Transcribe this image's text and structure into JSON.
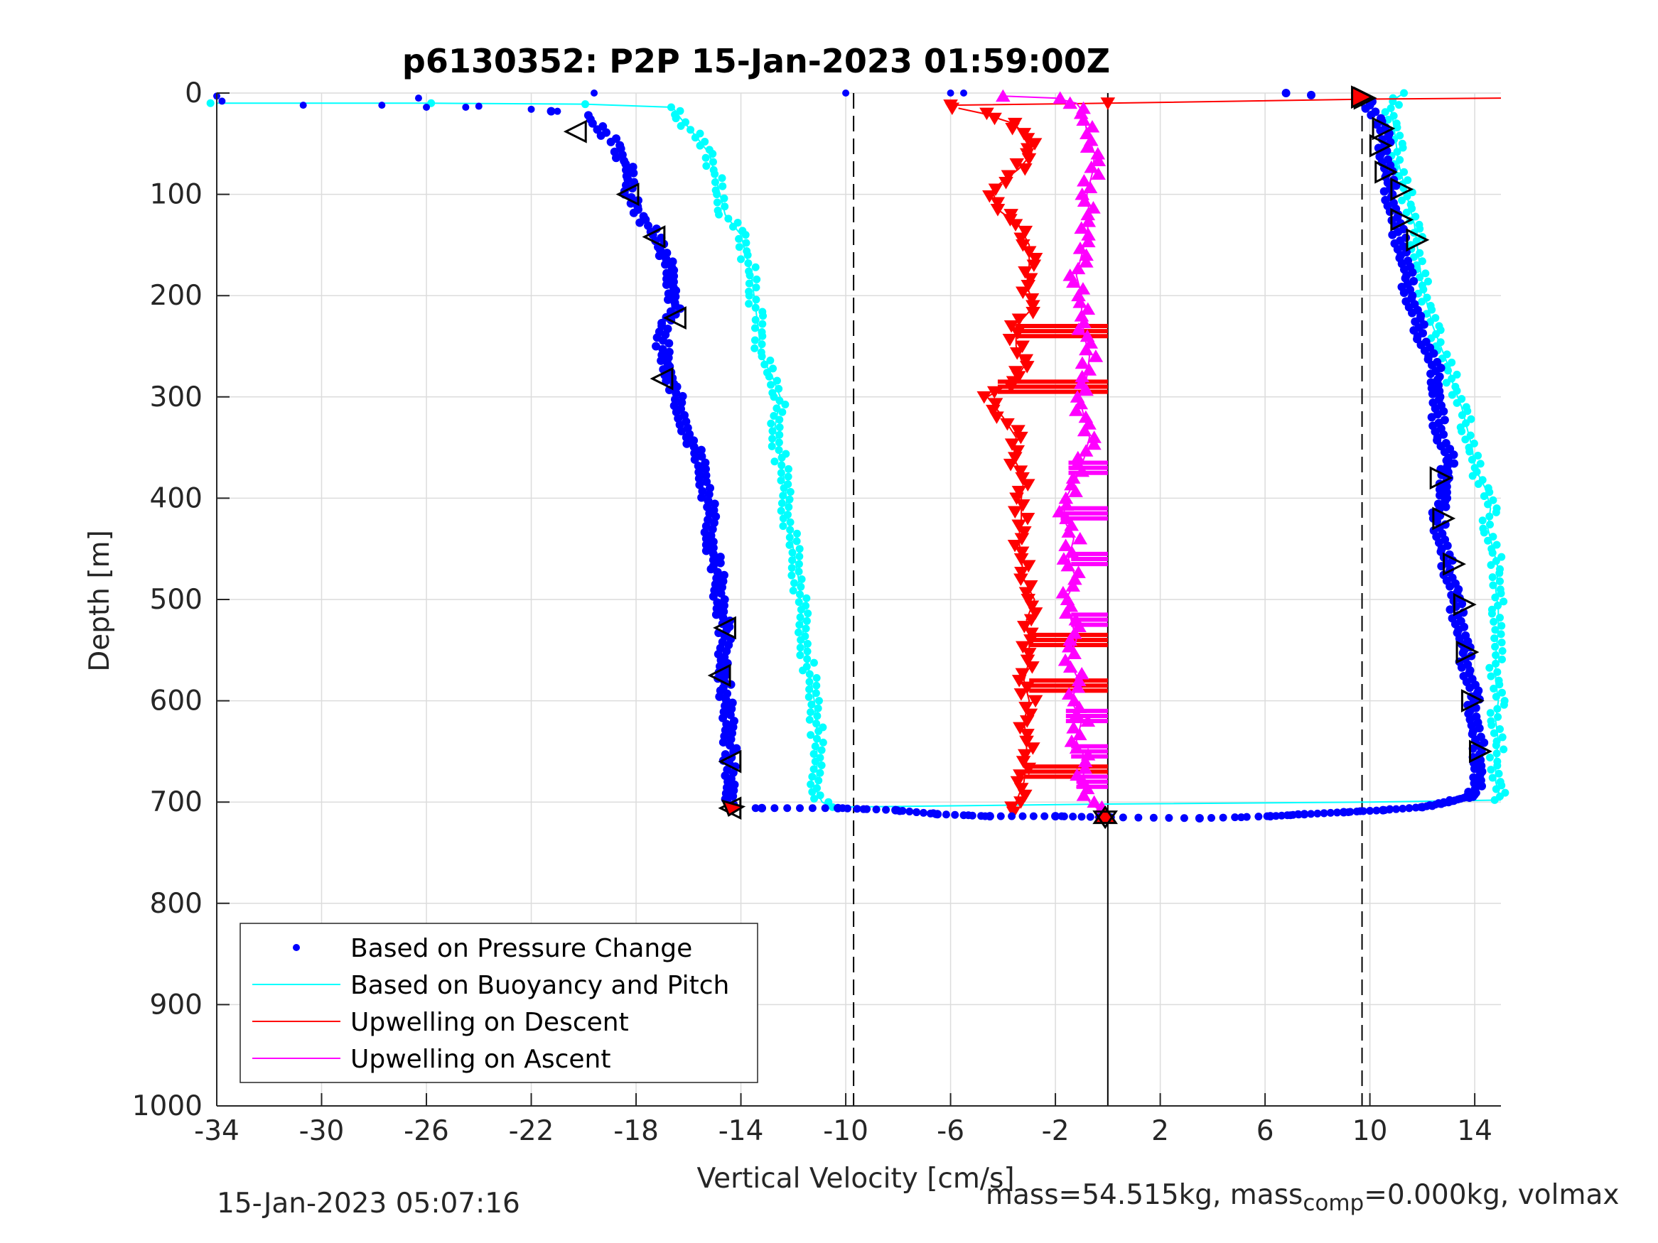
{
  "chart_data": {
    "type": "scatter",
    "title": "p6130352: P2P 15-Jan-2023 01:59:00Z",
    "xlabel": "Vertical Velocity [cm/s]",
    "ylabel": "Depth [m]",
    "xlim": [
      -34,
      15
    ],
    "ylim": [
      0,
      1000
    ],
    "y_reversed": true,
    "grid": true,
    "xticks": [
      -34,
      -30,
      -26,
      -22,
      -18,
      -14,
      -10,
      -6,
      -2,
      2,
      6,
      10,
      14
    ],
    "yticks": [
      0,
      100,
      200,
      300,
      400,
      500,
      600,
      700,
      800,
      900,
      1000
    ],
    "legend_position": "bottom-left",
    "vertical_lines": [
      {
        "x": -9.7,
        "style": "dashed",
        "color": "#000000"
      },
      {
        "x": 9.7,
        "style": "dashed",
        "color": "#000000"
      },
      {
        "x": 0,
        "style": "solid",
        "color": "#000000"
      }
    ],
    "series": [
      {
        "name": "Based on Pressure Change",
        "color": "#0000ff",
        "style": "dots",
        "descent": [
          [
            -34,
            3
          ],
          [
            -33.8,
            8
          ],
          [
            -30.7,
            12
          ],
          [
            -27.7,
            12
          ],
          [
            -26,
            14
          ],
          [
            -24.5,
            14
          ],
          [
            -22,
            16
          ],
          [
            -21,
            18
          ],
          [
            -20,
            22
          ],
          [
            -19.8,
            26
          ],
          [
            -19.6,
            30
          ],
          [
            -19.3,
            36
          ],
          [
            -19,
            45
          ],
          [
            -18.7,
            55
          ],
          [
            -18.4,
            70
          ],
          [
            -18.2,
            85
          ],
          [
            -18.2,
            100
          ],
          [
            -18.1,
            115
          ],
          [
            -17.7,
            125
          ],
          [
            -17.3,
            140
          ],
          [
            -16.9,
            155
          ],
          [
            -16.8,
            175
          ],
          [
            -16.6,
            195
          ],
          [
            -16.5,
            210
          ],
          [
            -16.9,
            230
          ],
          [
            -17,
            250
          ],
          [
            -16.9,
            270
          ],
          [
            -16.5,
            290
          ],
          [
            -16.4,
            315
          ],
          [
            -15.9,
            340
          ],
          [
            -15.6,
            365
          ],
          [
            -15.3,
            390
          ],
          [
            -15.2,
            415
          ],
          [
            -15.2,
            440
          ],
          [
            -14.9,
            470
          ],
          [
            -14.8,
            500
          ],
          [
            -14.6,
            530
          ],
          [
            -14.7,
            560
          ],
          [
            -14.6,
            590
          ],
          [
            -14.5,
            620
          ],
          [
            -14.4,
            650
          ],
          [
            -14.5,
            680
          ],
          [
            -14.4,
            700
          ],
          [
            -14.4,
            705
          ]
        ],
        "bottom": [
          [
            -13.2,
            706
          ],
          [
            -10.3,
            706
          ],
          [
            -8.1,
            708
          ],
          [
            -6.5,
            712
          ],
          [
            -4.5,
            714
          ],
          [
            -2,
            714
          ],
          [
            0,
            715
          ],
          [
            3.5,
            716
          ],
          [
            6.2,
            714
          ],
          [
            7.5,
            712
          ],
          [
            9,
            710
          ],
          [
            10.5,
            708
          ],
          [
            12,
            705
          ],
          [
            13,
            700
          ],
          [
            13.7,
            695
          ],
          [
            14,
            690
          ]
        ],
        "ascent": [
          [
            14,
            690
          ],
          [
            14.1,
            670
          ],
          [
            14.2,
            650
          ],
          [
            14,
            630
          ],
          [
            14,
            610
          ],
          [
            13.9,
            590
          ],
          [
            13.7,
            570
          ],
          [
            13.6,
            550
          ],
          [
            13.5,
            530
          ],
          [
            13.3,
            510
          ],
          [
            13.2,
            490
          ],
          [
            13,
            470
          ],
          [
            12.8,
            450
          ],
          [
            12.6,
            420
          ],
          [
            12.7,
            400
          ],
          [
            12.9,
            380
          ],
          [
            13,
            360
          ],
          [
            12.7,
            340
          ],
          [
            12.6,
            320
          ],
          [
            12.5,
            300
          ],
          [
            12.6,
            280
          ],
          [
            12.3,
            260
          ],
          [
            12,
            240
          ],
          [
            11.7,
            220
          ],
          [
            11.5,
            200
          ],
          [
            11.4,
            180
          ],
          [
            11.3,
            160
          ],
          [
            11.1,
            140
          ],
          [
            10.9,
            120
          ],
          [
            10.8,
            100
          ],
          [
            10.7,
            80
          ],
          [
            10.6,
            60
          ],
          [
            10.5,
            40
          ],
          [
            10.3,
            25
          ],
          [
            10,
            12
          ],
          [
            9.7,
            5
          ],
          [
            8,
            2
          ],
          [
            6.8,
            0
          ]
        ],
        "scattered": [
          [
            -19.6,
            0
          ],
          [
            -10,
            0
          ],
          [
            -6,
            0
          ],
          [
            -5.5,
            0
          ],
          [
            -26.3,
            5
          ],
          [
            -24,
            13
          ]
        ]
      },
      {
        "name": "Based on Buoyancy and Pitch",
        "color": "#00ffff",
        "style": "line+dots",
        "descent": [
          [
            -34,
            10
          ],
          [
            -26,
            10
          ],
          [
            -20,
            11
          ],
          [
            -16.6,
            14
          ],
          [
            -16.3,
            25
          ],
          [
            -15.8,
            40
          ],
          [
            -15.2,
            60
          ],
          [
            -15,
            80
          ],
          [
            -14.8,
            100
          ],
          [
            -14.6,
            120
          ],
          [
            -14,
            140
          ],
          [
            -13.8,
            160
          ],
          [
            -13.6,
            180
          ],
          [
            -13.5,
            200
          ],
          [
            -13.4,
            220
          ],
          [
            -13.3,
            240
          ],
          [
            -13.2,
            260
          ],
          [
            -12.8,
            280
          ],
          [
            -12.5,
            300
          ],
          [
            -12.7,
            330
          ],
          [
            -12.5,
            360
          ],
          [
            -12.3,
            390
          ],
          [
            -12.2,
            420
          ],
          [
            -12,
            450
          ],
          [
            -11.8,
            480
          ],
          [
            -11.7,
            510
          ],
          [
            -11.6,
            540
          ],
          [
            -11.4,
            570
          ],
          [
            -11.2,
            600
          ],
          [
            -11.1,
            630
          ],
          [
            -11.1,
            660
          ],
          [
            -11.1,
            690
          ],
          [
            -10.9,
            700
          ],
          [
            -10.5,
            705
          ]
        ],
        "bottom_line": [
          [
            -10.5,
            705
          ],
          [
            0,
            702
          ],
          [
            10,
            700
          ],
          [
            15,
            698
          ]
        ],
        "ascent": [
          [
            15,
            698
          ],
          [
            14.8,
            680
          ],
          [
            14.8,
            660
          ],
          [
            14.9,
            640
          ],
          [
            14.8,
            620
          ],
          [
            14.9,
            600
          ],
          [
            14.8,
            580
          ],
          [
            14.8,
            555
          ],
          [
            14.9,
            530
          ],
          [
            14.9,
            510
          ],
          [
            14.8,
            490
          ],
          [
            14.9,
            470
          ],
          [
            14.7,
            450
          ],
          [
            14.5,
            430
          ],
          [
            14.6,
            410
          ],
          [
            14.4,
            390
          ],
          [
            14,
            370
          ],
          [
            13.9,
            350
          ],
          [
            13.7,
            330
          ],
          [
            13.5,
            310
          ],
          [
            13.2,
            290
          ],
          [
            13,
            270
          ],
          [
            12.7,
            250
          ],
          [
            12.4,
            230
          ],
          [
            12.2,
            210
          ],
          [
            12,
            190
          ],
          [
            11.9,
            170
          ],
          [
            11.8,
            150
          ],
          [
            11.7,
            130
          ],
          [
            11.5,
            110
          ],
          [
            11.3,
            90
          ],
          [
            11.1,
            70
          ],
          [
            11,
            50
          ],
          [
            10.9,
            30
          ],
          [
            10.8,
            15
          ],
          [
            11,
            5
          ],
          [
            11.3,
            0
          ]
        ]
      },
      {
        "name": "Upwelling on Descent",
        "color": "#ff0000",
        "style": "line+down-triangles",
        "points": [
          [
            -5.7,
            15
          ],
          [
            -4.8,
            20
          ],
          [
            -3.6,
            30
          ],
          [
            -3,
            45
          ],
          [
            -2.9,
            60
          ],
          [
            -3.4,
            75
          ],
          [
            -4.4,
            95
          ],
          [
            -4.2,
            115
          ],
          [
            -3.4,
            130
          ],
          [
            -3,
            150
          ],
          [
            -3,
            170
          ],
          [
            -3.1,
            190
          ],
          [
            -2.8,
            210
          ],
          [
            -3.5,
            230
          ],
          [
            -3.5,
            250
          ],
          [
            -3.2,
            270
          ],
          [
            -3.6,
            285
          ],
          [
            -4.6,
            300
          ],
          [
            -4,
            320
          ],
          [
            -3.5,
            340
          ],
          [
            -3.6,
            360
          ],
          [
            -3.2,
            380
          ],
          [
            -3.3,
            400
          ],
          [
            -3.3,
            420
          ],
          [
            -3.4,
            440
          ],
          [
            -3.3,
            460
          ],
          [
            -3.2,
            480
          ],
          [
            -2.8,
            500
          ],
          [
            -3.1,
            520
          ],
          [
            -3,
            540
          ],
          [
            -3,
            560
          ],
          [
            -3.2,
            580
          ],
          [
            -3,
            600
          ],
          [
            -3.2,
            620
          ],
          [
            -3.1,
            640
          ],
          [
            -3.1,
            660
          ],
          [
            -3.2,
            680
          ],
          [
            -3.5,
            700
          ],
          [
            -3.6,
            710
          ]
        ],
        "surface_spike": [
          [
            -6,
            12
          ],
          [
            0,
            10
          ],
          [
            10,
            6
          ],
          [
            15,
            5
          ]
        ],
        "horizontal_bands": [
          [
            235,
            -3.5,
            0
          ],
          [
            290,
            -4.2,
            0
          ],
          [
            540,
            -3,
            0
          ],
          [
            585,
            -3,
            0
          ],
          [
            670,
            -3.2,
            0
          ]
        ]
      },
      {
        "name": "Upwelling on Ascent",
        "color": "#ff00ff",
        "style": "line+up-triangles",
        "points": [
          [
            0,
            715
          ],
          [
            -0.7,
            700
          ],
          [
            -1,
            680
          ],
          [
            -0.8,
            660
          ],
          [
            -1.2,
            640
          ],
          [
            -1,
            620
          ],
          [
            -1.4,
            600
          ],
          [
            -1.1,
            580
          ],
          [
            -1.5,
            560
          ],
          [
            -1.2,
            540
          ],
          [
            -1.4,
            520
          ],
          [
            -1.6,
            500
          ],
          [
            -1.2,
            480
          ],
          [
            -1.5,
            460
          ],
          [
            -1.3,
            440
          ],
          [
            -1.7,
            420
          ],
          [
            -1.6,
            400
          ],
          [
            -1.2,
            380
          ],
          [
            -0.9,
            360
          ],
          [
            -0.7,
            340
          ],
          [
            -0.9,
            320
          ],
          [
            -1.1,
            300
          ],
          [
            -0.8,
            280
          ],
          [
            -0.7,
            260
          ],
          [
            -0.9,
            240
          ],
          [
            -1,
            220
          ],
          [
            -1,
            200
          ],
          [
            -1.2,
            180
          ],
          [
            -1,
            160
          ],
          [
            -0.8,
            140
          ],
          [
            -0.7,
            120
          ],
          [
            -0.8,
            100
          ],
          [
            -0.6,
            80
          ],
          [
            -0.5,
            60
          ],
          [
            -0.8,
            40
          ],
          [
            -0.9,
            20
          ],
          [
            -1.2,
            10
          ],
          [
            -2,
            5
          ],
          [
            -4,
            3
          ]
        ],
        "horizontal_bands": [
          [
            370,
            -1.5,
            0
          ],
          [
            415,
            -1.8,
            0
          ],
          [
            460,
            -1.4,
            0
          ],
          [
            520,
            -1.4,
            0
          ],
          [
            615,
            -1.6,
            0
          ],
          [
            650,
            -1.4,
            0
          ],
          [
            680,
            -1.2,
            0
          ]
        ]
      }
    ],
    "markers": {
      "descent_triangles": [
        [
          -20.3,
          38
        ],
        [
          -18.3,
          100
        ],
        [
          -17.3,
          142
        ],
        [
          -16.5,
          222
        ],
        [
          -17,
          282
        ],
        [
          -14.6,
          528
        ],
        [
          -14.8,
          575
        ],
        [
          -14.4,
          660
        ],
        [
          -14.4,
          706
        ]
      ],
      "ascent_triangles": [
        [
          9.8,
          5
        ],
        [
          10.5,
          35
        ],
        [
          10.4,
          52
        ],
        [
          10.6,
          78
        ],
        [
          11.2,
          95
        ],
        [
          11.2,
          125
        ],
        [
          11.8,
          145
        ],
        [
          12.7,
          380
        ],
        [
          12.8,
          420
        ],
        [
          13.2,
          465
        ],
        [
          13.6,
          505
        ],
        [
          13.7,
          552
        ],
        [
          13.9,
          600
        ],
        [
          14.2,
          650
        ]
      ],
      "surface_marker": [
        9.7,
        4
      ],
      "bottom_marker": [
        -0.1,
        715
      ],
      "bottom_red_marker": [
        -14.3,
        706
      ]
    }
  },
  "footer": {
    "timestamp": "15-Jan-2023 05:07:16",
    "mass_text_1": "mass=54.515kg, mass",
    "mass_sub": "comp",
    "mass_text_2": "=0.000kg, volmax"
  }
}
